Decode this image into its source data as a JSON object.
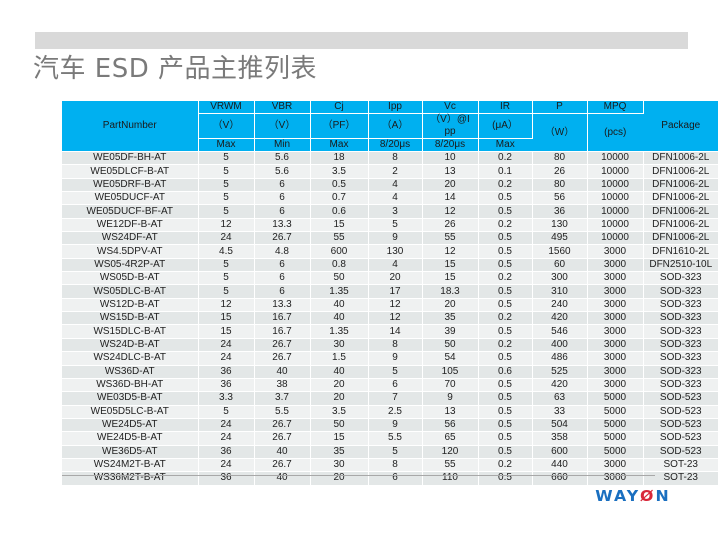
{
  "title": "汽车 ESD 产品主推列表",
  "colors": {
    "header_bg": "#00b0f0",
    "row_odd": "#e3e7e7",
    "row_even": "#eff1f1",
    "title": "#7a7a7a",
    "bar": "#d9d9d9",
    "logo": "#1a6fc0",
    "logo_accent": "#d8283a"
  },
  "table": {
    "header": {
      "partnumber": "PartNumber",
      "package": "Package",
      "row1": [
        "VRWM",
        "VBR",
        "Cj",
        "Ipp",
        "Vc",
        "IR",
        "P",
        "MPQ"
      ],
      "row2": [
        "（V）",
        "（V）",
        "（PF）",
        "（A）",
        "（V）@Ipp",
        "(μA）",
        "（W）",
        "(pcs)"
      ],
      "row3": [
        "Max",
        "Min",
        "Max",
        "8/20μs",
        "8/20μs",
        "Max"
      ]
    },
    "rows": [
      [
        "WE05DF-BH-AT",
        "5",
        "5.6",
        "18",
        "8",
        "10",
        "0.2",
        "80",
        "10000",
        "DFN1006-2L"
      ],
      [
        "WE05DLCF-B-AT",
        "5",
        "5.6",
        "3.5",
        "2",
        "13",
        "0.1",
        "26",
        "10000",
        "DFN1006-2L"
      ],
      [
        "WE05DRF-B-AT",
        "5",
        "6",
        "0.5",
        "4",
        "20",
        "0.2",
        "80",
        "10000",
        "DFN1006-2L"
      ],
      [
        "WE05DUCF-AT",
        "5",
        "6",
        "0.7",
        "4",
        "14",
        "0.5",
        "56",
        "10000",
        "DFN1006-2L"
      ],
      [
        "WE05DUCF-BF-AT",
        "5",
        "6",
        "0.6",
        "3",
        "12",
        "0.5",
        "36",
        "10000",
        "DFN1006-2L"
      ],
      [
        "WE12DF-B-AT",
        "12",
        "13.3",
        "15",
        "5",
        "26",
        "0.2",
        "130",
        "10000",
        "DFN1006-2L"
      ],
      [
        "WS24DF-AT",
        "24",
        "26.7",
        "55",
        "9",
        "55",
        "0.5",
        "495",
        "10000",
        "DFN1006-2L"
      ],
      [
        "WS4.5DPV-AT",
        "4.5",
        "4.8",
        "600",
        "130",
        "12",
        "0.5",
        "1560",
        "3000",
        "DFN1610-2L"
      ],
      [
        "WS05-4R2P-AT",
        "5",
        "6",
        "0.8",
        "4",
        "15",
        "0.5",
        "60",
        "3000",
        "DFN2510-10L"
      ],
      [
        "WS05D-B-AT",
        "5",
        "6",
        "50",
        "20",
        "15",
        "0.2",
        "300",
        "3000",
        "SOD-323"
      ],
      [
        "WS05DLC-B-AT",
        "5",
        "6",
        "1.35",
        "17",
        "18.3",
        "0.5",
        "310",
        "3000",
        "SOD-323"
      ],
      [
        "WS12D-B-AT",
        "12",
        "13.3",
        "40",
        "12",
        "20",
        "0.5",
        "240",
        "3000",
        "SOD-323"
      ],
      [
        "WS15D-B-AT",
        "15",
        "16.7",
        "40",
        "12",
        "35",
        "0.2",
        "420",
        "3000",
        "SOD-323"
      ],
      [
        "WS15DLC-B-AT",
        "15",
        "16.7",
        "1.35",
        "14",
        "39",
        "0.5",
        "546",
        "3000",
        "SOD-323"
      ],
      [
        "WS24D-B-AT",
        "24",
        "26.7",
        "30",
        "8",
        "50",
        "0.2",
        "400",
        "3000",
        "SOD-323"
      ],
      [
        "WS24DLC-B-AT",
        "24",
        "26.7",
        "1.5",
        "9",
        "54",
        "0.5",
        "486",
        "3000",
        "SOD-323"
      ],
      [
        "WS36D-AT",
        "36",
        "40",
        "40",
        "5",
        "105",
        "0.6",
        "525",
        "3000",
        "SOD-323"
      ],
      [
        "WS36D-BH-AT",
        "36",
        "38",
        "20",
        "6",
        "70",
        "0.5",
        "420",
        "3000",
        "SOD-323"
      ],
      [
        "WE03D5-B-AT",
        "3.3",
        "3.7",
        "20",
        "7",
        "9",
        "0.5",
        "63",
        "5000",
        "SOD-523"
      ],
      [
        "WE05D5LC-B-AT",
        "5",
        "5.5",
        "3.5",
        "2.5",
        "13",
        "0.5",
        "33",
        "5000",
        "SOD-523"
      ],
      [
        "WE24D5-AT",
        "24",
        "26.7",
        "50",
        "9",
        "56",
        "0.5",
        "504",
        "5000",
        "SOD-523"
      ],
      [
        "WE24D5-B-AT",
        "24",
        "26.7",
        "15",
        "5.5",
        "65",
        "0.5",
        "358",
        "5000",
        "SOD-523"
      ],
      [
        "WE36D5-AT",
        "36",
        "40",
        "35",
        "5",
        "120",
        "0.5",
        "600",
        "5000",
        "SOD-523"
      ],
      [
        "WS24M2T-B-AT",
        "24",
        "26.7",
        "30",
        "8",
        "55",
        "0.2",
        "440",
        "3000",
        "SOT-23"
      ],
      [
        "WS36M2T-B-AT",
        "36",
        "40",
        "20",
        "6",
        "110",
        "0.5",
        "660",
        "3000",
        "SOT-23"
      ]
    ]
  },
  "logo": {
    "part1": "WAY",
    "accent": "Ø",
    "part2": "N"
  }
}
